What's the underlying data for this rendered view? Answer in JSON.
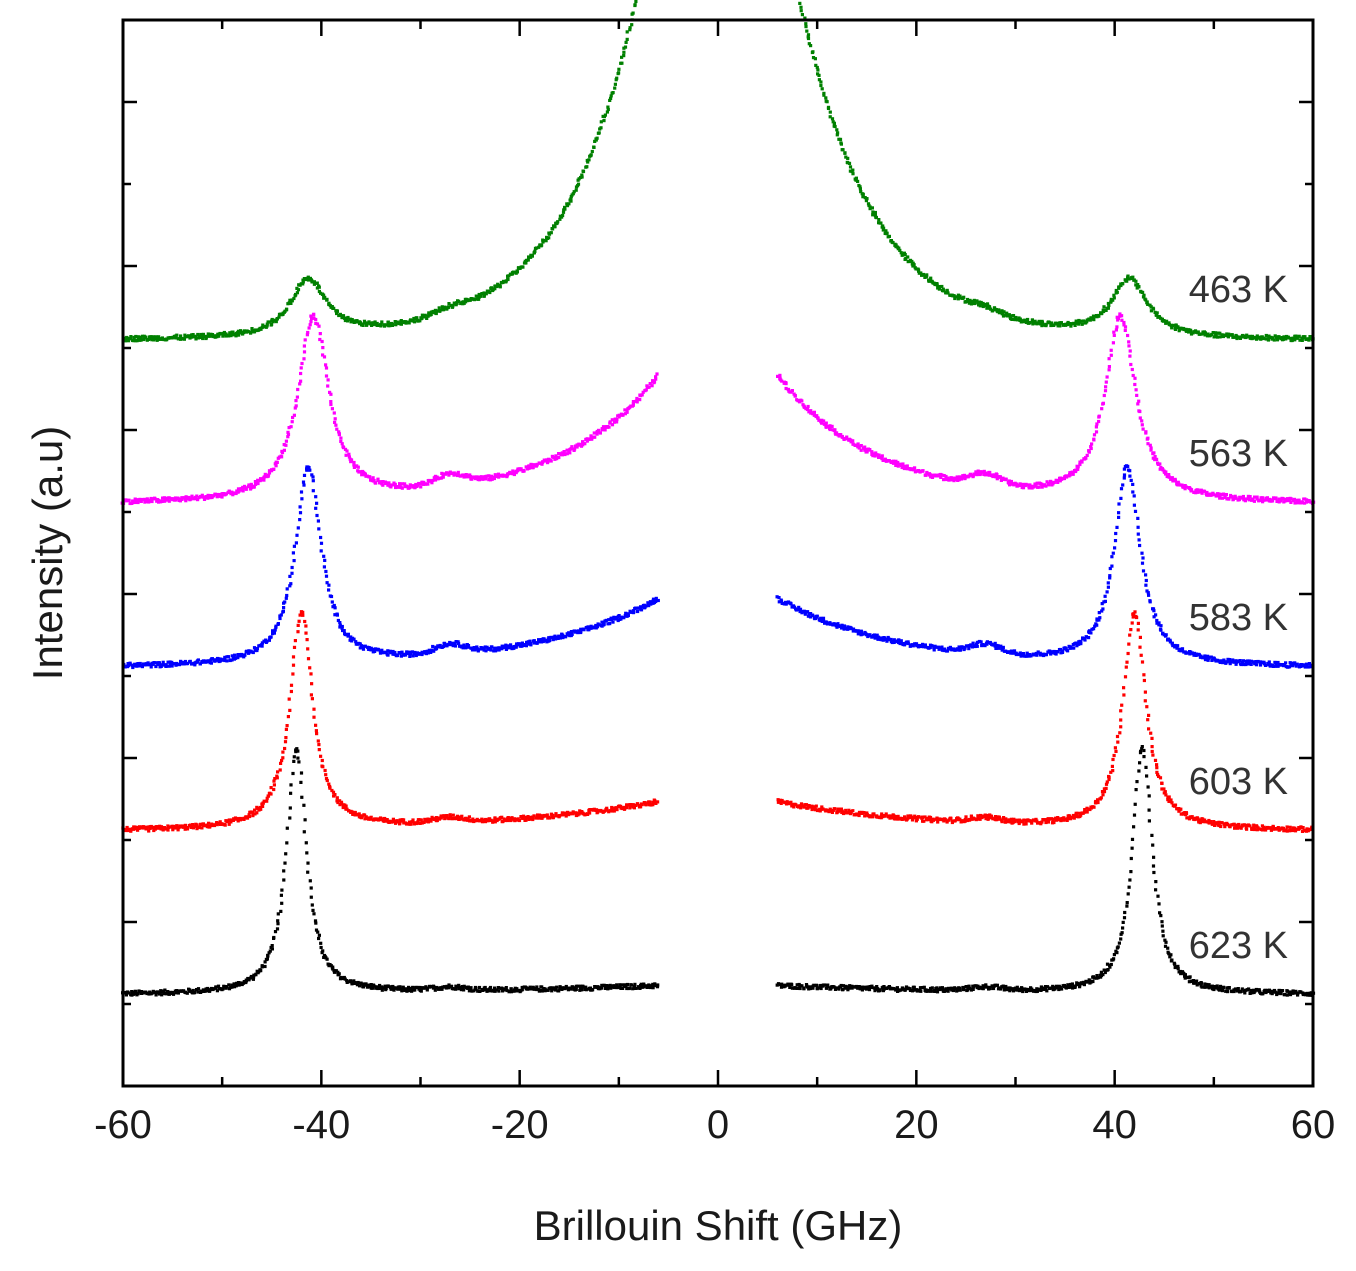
{
  "chart_data": {
    "type": "scatter",
    "title": "",
    "xlabel": "Brillouin Shift (GHz)",
    "ylabel": "Intensity (a.u)",
    "xlim": [
      -60,
      60
    ],
    "ylim": [
      0,
      6.5
    ],
    "x_ticks": [
      -60,
      -40,
      -20,
      0,
      20,
      40,
      60
    ],
    "x_tick_labels": [
      "-60",
      "-40",
      "-20",
      "0",
      "20",
      "40",
      "60"
    ],
    "y_tick_labels_shown": false,
    "grid": false,
    "excluded_central_range": [
      -6,
      6
    ],
    "series": [
      {
        "name": "623 K",
        "color": "#000000",
        "baseline": 0.55,
        "peak_height": 1.5,
        "peak_width": 1.2,
        "peaks": [
          -42.5,
          42.8
        ],
        "tail_amp": 0.06,
        "tail_scale": 25,
        "bump_amp": 0.02
      },
      {
        "name": "603 K",
        "color": "#ff0000",
        "baseline": 1.55,
        "peak_height": 1.32,
        "peak_width": 1.4,
        "peaks": [
          -42.0,
          42.0
        ],
        "tail_amp": 0.18,
        "tail_scale": 16,
        "bump_amp": 0.03
      },
      {
        "name": "583 K",
        "color": "#0000ff",
        "baseline": 2.55,
        "peak_height": 1.2,
        "peak_width": 1.6,
        "peaks": [
          -41.3,
          41.3
        ],
        "tail_amp": 0.42,
        "tail_scale": 12,
        "bump_amp": 0.06
      },
      {
        "name": "563 K",
        "color": "#ff00ff",
        "baseline": 3.55,
        "peak_height": 1.12,
        "peak_width": 1.9,
        "peaks": [
          -40.8,
          40.6
        ],
        "tail_amp": 0.78,
        "tail_scale": 10,
        "bump_amp": 0.07
      },
      {
        "name": "463 K",
        "color": "#008000",
        "baseline": 4.55,
        "peak_height": 0.35,
        "peak_width": 2.2,
        "peaks": [
          -41.3,
          41.5
        ],
        "tail_amp": 2.8,
        "tail_scale": 7.5,
        "bump_amp": 0.03
      }
    ]
  }
}
